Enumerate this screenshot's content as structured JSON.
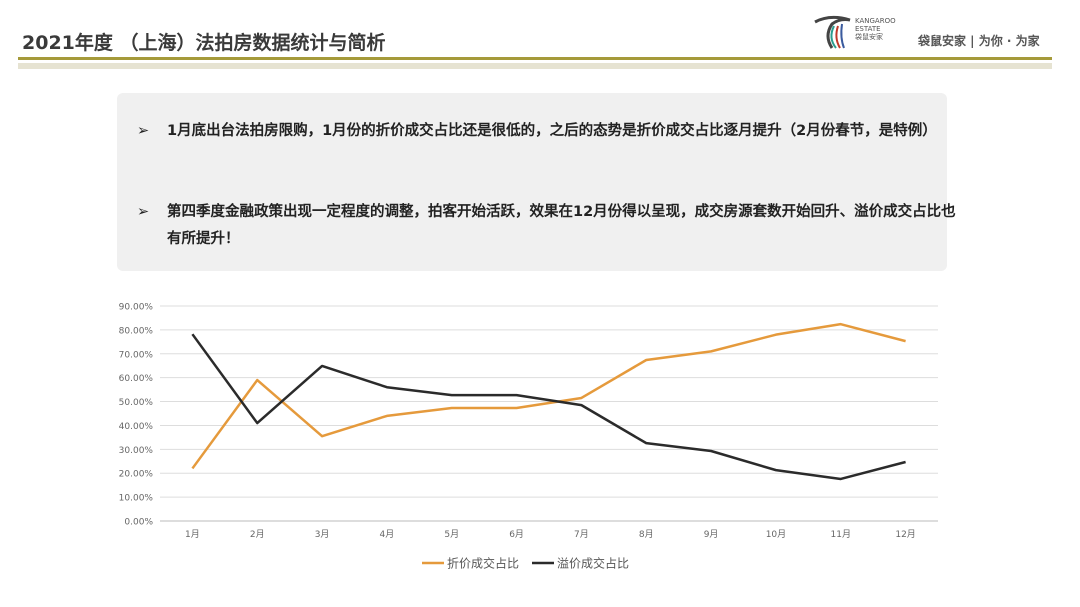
{
  "header": {
    "title": "2021年度 （上海）法拍房数据统计与简析",
    "logo_text": [
      "KANGAROO",
      "ESTATE",
      "袋鼠安家"
    ],
    "slogan": "袋鼠安家 | 为你 · 为家"
  },
  "bullets": [
    {
      "marker": "➢",
      "text": "1月底出台法拍房限购，1月份的折价成交占比还是很低的，之后的态势是折价成交占比逐月提升（2月份春节，是特例）"
    },
    {
      "marker": "➢",
      "text": "第四季度金融政策出现一定程度的调整，拍客开始活跃，效果在12月份得以呈现，成交房源套数开始回升、溢价成交占比也有所提升！"
    }
  ],
  "chart_data": {
    "type": "line",
    "categories": [
      "1月",
      "2月",
      "3月",
      "4月",
      "5月",
      "6月",
      "7月",
      "8月",
      "9月",
      "10月",
      "11月",
      "12月"
    ],
    "ylim": [
      0,
      90
    ],
    "yticks": [
      "0.00%",
      "10.00%",
      "20.00%",
      "30.00%",
      "40.00%",
      "50.00%",
      "60.00%",
      "70.00%",
      "80.00%",
      "90.00%"
    ],
    "grid": true,
    "legend": "bottom",
    "series": [
      {
        "name": "折价成交占比",
        "color": "#e59a3c",
        "values": [
          22,
          59,
          35.5,
          44,
          47.3,
          47.3,
          51.5,
          67.4,
          71,
          78,
          82.4,
          75.3
        ]
      },
      {
        "name": "溢价成交占比",
        "color": "#2b2b2b",
        "values": [
          78.2,
          41,
          64.9,
          56,
          52.7,
          52.7,
          48.5,
          32.6,
          29.3,
          21.3,
          17.6,
          24.7
        ]
      }
    ]
  }
}
